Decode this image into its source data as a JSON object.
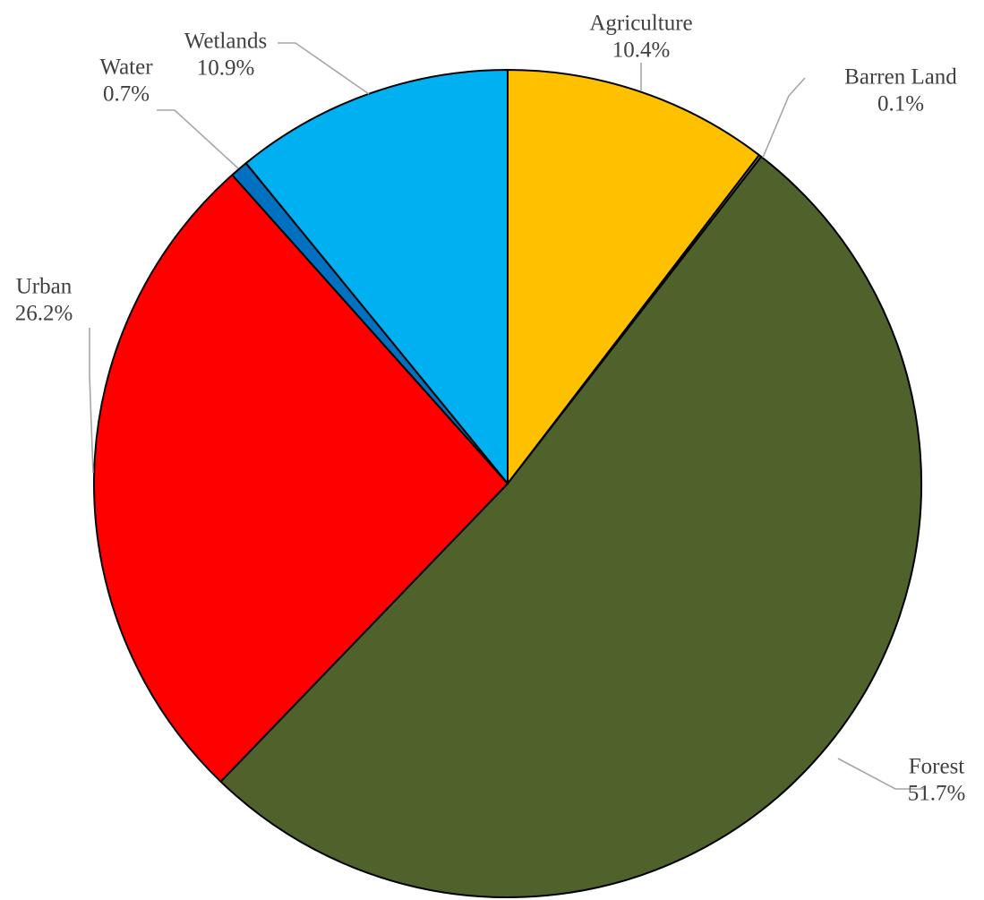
{
  "chart_data": {
    "type": "pie",
    "title": "",
    "start_angle_deg": 0,
    "direction": "clockwise",
    "legend": "none",
    "slices": [
      {
        "name": "Agriculture",
        "value": 10.4,
        "label": "10.4%",
        "color": "#FFC000"
      },
      {
        "name": "Barren Land",
        "value": 0.1,
        "label": "0.1%",
        "color": "#7F7F7F"
      },
      {
        "name": "Forest",
        "value": 51.7,
        "label": "51.7%",
        "color": "#4F622C"
      },
      {
        "name": "Urban",
        "value": 26.2,
        "label": "26.2%",
        "color": "#FF0000"
      },
      {
        "name": "Water",
        "value": 0.7,
        "label": "0.7%",
        "color": "#0070C0"
      },
      {
        "name": "Wetlands",
        "value": 10.9,
        "label": "10.9%",
        "color": "#00B0F0"
      }
    ]
  }
}
